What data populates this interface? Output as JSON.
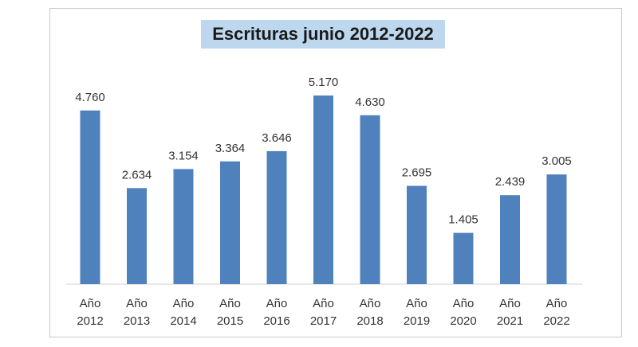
{
  "chart_data": {
    "type": "bar",
    "title": "Escrituras junio 2012-2022",
    "categories": [
      [
        "Año",
        "2012"
      ],
      [
        "Año",
        "2013"
      ],
      [
        "Año",
        "2014"
      ],
      [
        "Año",
        "2015"
      ],
      [
        "Año",
        "2016"
      ],
      [
        "Año",
        "2017"
      ],
      [
        "Año",
        "2018"
      ],
      [
        "Año",
        "2019"
      ],
      [
        "Año",
        "2020"
      ],
      [
        "Año",
        "2021"
      ],
      [
        "Año",
        "2022"
      ]
    ],
    "values": [
      4760,
      2634,
      3154,
      3364,
      3646,
      5170,
      4630,
      2695,
      1405,
      2439,
      3005
    ],
    "value_labels": [
      "4.760",
      "2.634",
      "3.154",
      "3.364",
      "3.646",
      "5.170",
      "4.630",
      "2.695",
      "1.405",
      "2.439",
      "3.005"
    ],
    "xlabel": "",
    "ylabel": "",
    "ylim": [
      0,
      5170
    ],
    "grid": false,
    "legend": "none",
    "bar_color": "#4f81bd"
  }
}
